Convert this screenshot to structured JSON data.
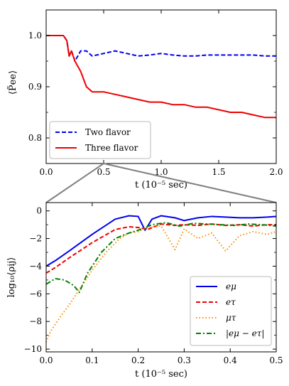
{
  "chart_data": [
    {
      "type": "line",
      "xlabel": "t (10⁻⁵ sec)",
      "ylabel": "⟨P̃ee⟩",
      "xlim": [
        0.0,
        2.0
      ],
      "ylim": [
        0.75,
        1.05
      ],
      "xticks": [
        "0.0",
        "0.5",
        "1.0",
        "1.5",
        "2.0"
      ],
      "yticks": [
        "0.8",
        "0.9",
        "1.0"
      ],
      "legend_position": "lower-left",
      "grid": false,
      "series": [
        {
          "name": "Two flavor",
          "color": "#0000ee",
          "style": "dashed",
          "x": [
            0.0,
            0.15,
            0.18,
            0.2,
            0.22,
            0.25,
            0.3,
            0.35,
            0.4,
            0.5,
            0.6,
            0.7,
            0.8,
            0.9,
            1.0,
            1.1,
            1.2,
            1.3,
            1.4,
            1.5,
            1.6,
            1.7,
            1.8,
            1.9,
            2.0
          ],
          "y": [
            1.0,
            1.0,
            0.99,
            0.96,
            0.97,
            0.95,
            0.97,
            0.97,
            0.96,
            0.965,
            0.97,
            0.965,
            0.96,
            0.962,
            0.965,
            0.962,
            0.96,
            0.96,
            0.962,
            0.962,
            0.962,
            0.962,
            0.962,
            0.96,
            0.96
          ]
        },
        {
          "name": "Three flavor",
          "color": "#ee0000",
          "style": "solid",
          "x": [
            0.0,
            0.15,
            0.18,
            0.2,
            0.22,
            0.25,
            0.3,
            0.35,
            0.4,
            0.5,
            0.6,
            0.7,
            0.8,
            0.9,
            1.0,
            1.1,
            1.2,
            1.3,
            1.4,
            1.5,
            1.6,
            1.7,
            1.8,
            1.9,
            2.0
          ],
          "y": [
            1.0,
            1.0,
            0.99,
            0.96,
            0.97,
            0.95,
            0.93,
            0.9,
            0.89,
            0.89,
            0.885,
            0.88,
            0.875,
            0.87,
            0.87,
            0.865,
            0.865,
            0.86,
            0.86,
            0.855,
            0.85,
            0.85,
            0.845,
            0.84,
            0.84
          ]
        }
      ]
    },
    {
      "type": "line",
      "xlabel": "t (10⁻⁵ sec)",
      "ylabel": "log₁₀⟨ρij⟩",
      "xlim": [
        0.0,
        0.5
      ],
      "ylim": [
        -10.2,
        0.6
      ],
      "xticks": [
        "0.0",
        "0.1",
        "0.2",
        "0.3",
        "0.4",
        "0.5"
      ],
      "yticks": [
        "−10",
        "−8",
        "−6",
        "−4",
        "−2",
        "0"
      ],
      "legend_position": "lower-right",
      "grid": false,
      "series": [
        {
          "name": "eμ",
          "color": "#0000ee",
          "style": "solid",
          "x": [
            0.0,
            0.02,
            0.05,
            0.1,
            0.15,
            0.18,
            0.2,
            0.215,
            0.23,
            0.25,
            0.28,
            0.3,
            0.33,
            0.36,
            0.39,
            0.42,
            0.45,
            0.48,
            0.5
          ],
          "y": [
            -4.0,
            -3.6,
            -2.9,
            -1.7,
            -0.6,
            -0.35,
            -0.4,
            -1.4,
            -0.6,
            -0.35,
            -0.5,
            -0.7,
            -0.5,
            -0.4,
            -0.45,
            -0.5,
            -0.5,
            -0.45,
            -0.4
          ]
        },
        {
          "name": "eτ",
          "color": "#ee0000",
          "style": "dashed",
          "x": [
            0.0,
            0.02,
            0.05,
            0.1,
            0.15,
            0.18,
            0.2,
            0.22,
            0.25,
            0.28,
            0.3,
            0.33,
            0.36,
            0.39,
            0.42,
            0.45,
            0.48,
            0.5
          ],
          "y": [
            -4.5,
            -4.1,
            -3.4,
            -2.3,
            -1.35,
            -1.15,
            -1.2,
            -1.35,
            -0.95,
            -1.05,
            -1.0,
            -1.05,
            -0.95,
            -1.05,
            -1.0,
            -1.1,
            -1.0,
            -1.0
          ]
        },
        {
          "name": "μτ",
          "color": "#ff8c00",
          "style": "dotted",
          "x": [
            0.0,
            0.01,
            0.03,
            0.05,
            0.07,
            0.1,
            0.13,
            0.16,
            0.18,
            0.2,
            0.22,
            0.25,
            0.28,
            0.3,
            0.33,
            0.36,
            0.39,
            0.42,
            0.45,
            0.48,
            0.5
          ],
          "y": [
            -9.5,
            -8.7,
            -7.7,
            -6.8,
            -5.8,
            -4.3,
            -3.0,
            -2.0,
            -1.6,
            -1.5,
            -1.2,
            -1.1,
            -2.8,
            -1.3,
            -2.0,
            -1.6,
            -2.9,
            -1.8,
            -1.5,
            -1.7,
            -1.5
          ]
        },
        {
          "name": "|eμ − eτ|",
          "color": "#008000",
          "style": "dashdot",
          "x": [
            0.0,
            0.02,
            0.04,
            0.06,
            0.072,
            0.09,
            0.12,
            0.15,
            0.18,
            0.2,
            0.23,
            0.26,
            0.29,
            0.32,
            0.35,
            0.38,
            0.41,
            0.44,
            0.47,
            0.5
          ],
          "y": [
            -5.3,
            -4.9,
            -5.0,
            -5.4,
            -5.9,
            -4.5,
            -3.0,
            -2.0,
            -1.6,
            -1.4,
            -1.0,
            -0.85,
            -1.1,
            -0.9,
            -0.95,
            -1.0,
            -1.05,
            -0.95,
            -1.0,
            -1.1
          ]
        }
      ]
    }
  ]
}
